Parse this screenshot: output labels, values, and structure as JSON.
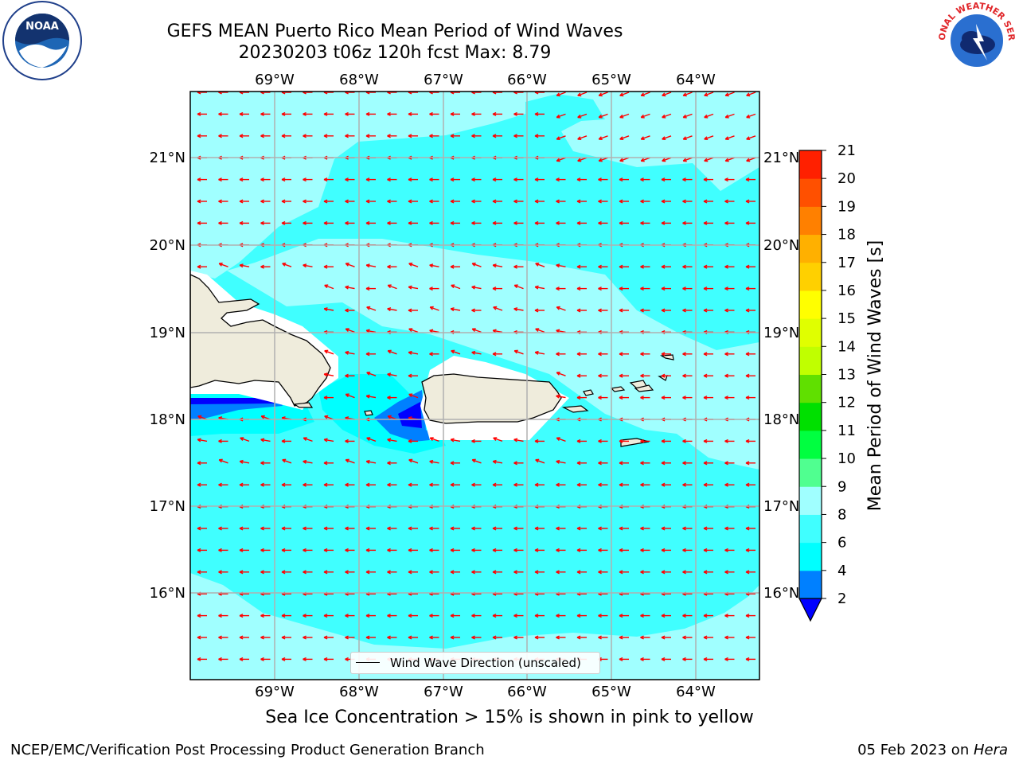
{
  "title_line1": "GEFS MEAN Puerto Rico Mean Period of Wind Waves",
  "title_line2": "20230203 t06z 120h fcst   Max: 8.79",
  "lon_labels": [
    "69°W",
    "68°W",
    "67°W",
    "66°W",
    "65°W",
    "64°W"
  ],
  "lat_labels": [
    "21°N",
    "20°N",
    "19°N",
    "18°N",
    "17°N",
    "16°N"
  ],
  "legend_label": "Wind Wave Direction (unscaled)",
  "colorbar": {
    "label": "Mean Period of Wind Waves [s]",
    "ticks": [
      "21",
      "20",
      "19",
      "18",
      "17",
      "16",
      "15",
      "14",
      "13",
      "12",
      "11",
      "10",
      "9",
      "8",
      "6",
      "4",
      "2"
    ],
    "colors": [
      "#0000ff",
      "#0080ff",
      "#00ffff",
      "#40ffff",
      "#a0ffff",
      "#50ff90",
      "#00ff40",
      "#00e000",
      "#60e000",
      "#c0ff00",
      "#e0ff00",
      "#ffff00",
      "#ffd000",
      "#ffb000",
      "#ff8000",
      "#ff5000",
      "#ff2000",
      "#ff0000"
    ]
  },
  "note": "Sea Ice Concentration > 15% is shown in pink to yellow",
  "footer_left": "NCEP/EMC/Verification Post Processing Product Generation Branch",
  "footer_right_prefix": "05 Feb 2023 on ",
  "footer_right_host": "Hera",
  "map": {
    "extent": {
      "lon_min": -69.99,
      "lon_max": -63.25,
      "lat_min": 15.03,
      "lat_max": 21.75
    },
    "ocean_color": "#40ffff",
    "light_color": "#a0ffff",
    "arrow_color": "#ff0000",
    "land_color": "#efecdc"
  },
  "logos": {
    "left": "NOAA",
    "right": "NATIONAL WEATHER SERVICE"
  }
}
